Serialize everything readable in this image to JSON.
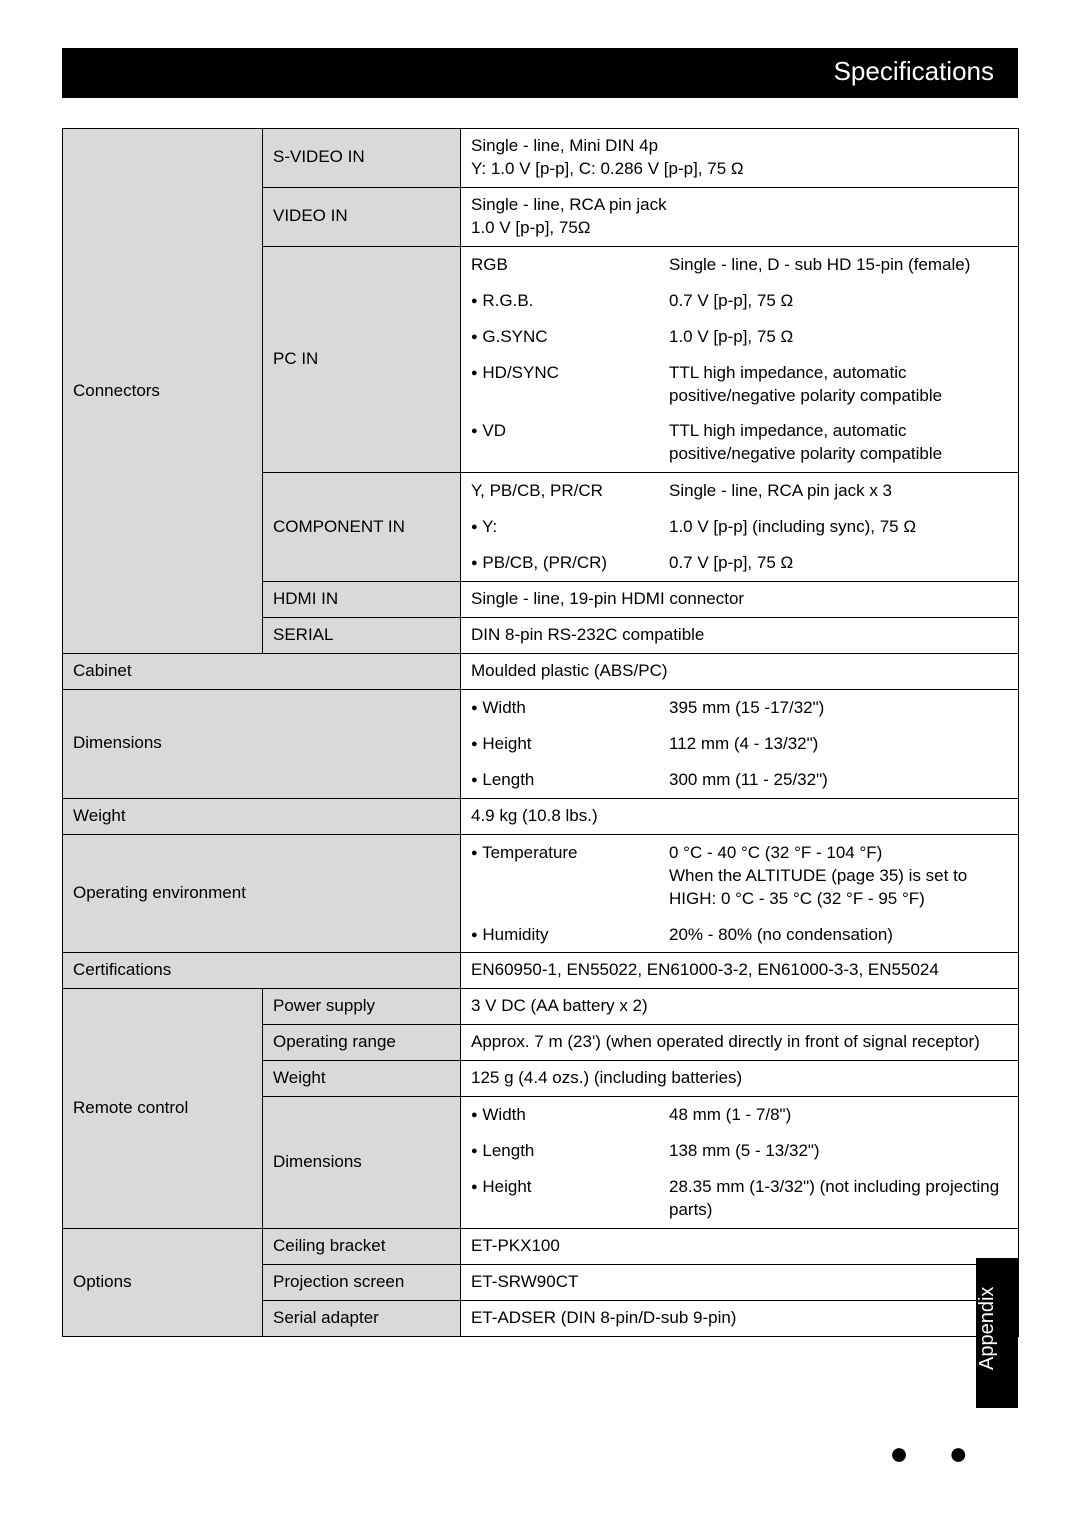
{
  "header": {
    "title": "Specifications"
  },
  "sidebar_tab": {
    "label": "Appendix"
  },
  "sections": {
    "connectors": {
      "label": "Connectors",
      "svideo": {
        "label": "S-VIDEO IN",
        "value": "Single - line, Mini DIN 4p\nY: 1.0 V [p-p], C: 0.286 V [p-p], 75 Ω"
      },
      "video": {
        "label": "VIDEO IN",
        "value": "Single - line, RCA pin jack\n1.0 V [p-p], 75Ω"
      },
      "pc": {
        "label": "PC IN",
        "rows": [
          {
            "k": "RGB",
            "v": "Single - line, D - sub HD 15-pin (female)"
          },
          {
            "k": "R.G.B.",
            "v": "0.7 V [p-p], 75 Ω",
            "bullet": true
          },
          {
            "k": "G.SYNC",
            "v": "1.0 V [p-p], 75 Ω",
            "bullet": true
          },
          {
            "k": "HD/SYNC",
            "v": "TTL high impedance, automatic positive/negative polarity compatible",
            "bullet": true
          },
          {
            "k": "VD",
            "v": "TTL high impedance, automatic positive/negative polarity compatible",
            "bullet": true
          }
        ]
      },
      "component": {
        "label": "COMPONENT IN",
        "rows": [
          {
            "k": "Y, PB/CB, PR/CR",
            "v": "Single - line, RCA pin jack x 3"
          },
          {
            "k": "Y:",
            "v": "1.0 V [p-p] (including sync), 75 Ω",
            "bullet": true
          },
          {
            "k": "PB/CB, (PR/CR)",
            "v": "0.7 V [p-p], 75 Ω",
            "bullet": true
          }
        ]
      },
      "hdmi": {
        "label": "HDMI IN",
        "value": "Single - line, 19-pin HDMI connector"
      },
      "serial": {
        "label": "SERIAL",
        "value": "DIN 8-pin RS-232C compatible"
      }
    },
    "cabinet": {
      "label": "Cabinet",
      "value": "Moulded plastic (ABS/PC)"
    },
    "dimensions": {
      "label": "Dimensions",
      "rows": [
        {
          "k": "Width",
          "v": "395 mm (15 -17/32\")",
          "bullet": true
        },
        {
          "k": "Height",
          "v": "112 mm (4 - 13/32\")",
          "bullet": true
        },
        {
          "k": "Length",
          "v": "300 mm (11 - 25/32\")",
          "bullet": true
        }
      ]
    },
    "weight": {
      "label": "Weight",
      "value": "4.9 kg (10.8 lbs.)"
    },
    "env": {
      "label": "Operating environment",
      "rows": [
        {
          "k": "Temperature",
          "v": "0 °C - 40 °C (32 °F - 104 °F)\nWhen the ALTITUDE (page 35) is set to HIGH: 0 °C - 35 °C (32 °F - 95 °F)",
          "bullet": true
        },
        {
          "k": "Humidity",
          "v": "20% - 80% (no condensation)",
          "bullet": true
        }
      ]
    },
    "cert": {
      "label": "Certifications",
      "value": "EN60950-1, EN55022, EN61000-3-2, EN61000-3-3, EN55024"
    },
    "remote": {
      "label": "Remote control",
      "power": {
        "label": "Power supply",
        "value": "3 V DC (AA battery x 2)"
      },
      "range": {
        "label": "Operating range",
        "value": "Approx. 7 m (23') (when operated directly in front of signal receptor)"
      },
      "weight": {
        "label": "Weight",
        "value": "125 g (4.4 ozs.) (including batteries)"
      },
      "dims": {
        "label": "Dimensions",
        "rows": [
          {
            "k": "Width",
            "v": "48 mm (1 - 7/8\")",
            "bullet": true
          },
          {
            "k": "Length",
            "v": "138 mm (5 - 13/32\")",
            "bullet": true
          },
          {
            "k": "Height",
            "v": "28.35 mm (1-3/32\") (not including projecting parts)",
            "bullet": true
          }
        ]
      }
    },
    "options": {
      "label": "Options",
      "rows": [
        {
          "k": "Ceiling bracket",
          "v": "ET-PKX100"
        },
        {
          "k": "Projection screen",
          "v": "ET-SRW90CT"
        },
        {
          "k": "Serial adapter",
          "v": "ET-ADSER (DIN 8-pin/D-sub 9-pin)"
        }
      ]
    }
  },
  "colors": {
    "header_bg": "#000000",
    "label_bg": "#d9d9d9",
    "border": "#000000",
    "text": "#000000"
  }
}
